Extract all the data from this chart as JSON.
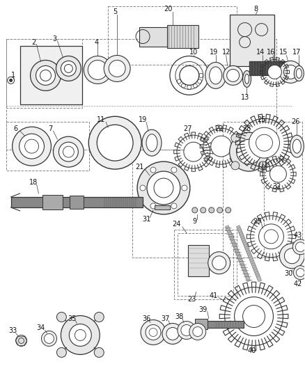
{
  "bg_color": "#ffffff",
  "fig_width": 4.38,
  "fig_height": 5.33,
  "dpi": 100,
  "line_color": "#333333",
  "label_color": "#111111",
  "label_fs": 7.0
}
